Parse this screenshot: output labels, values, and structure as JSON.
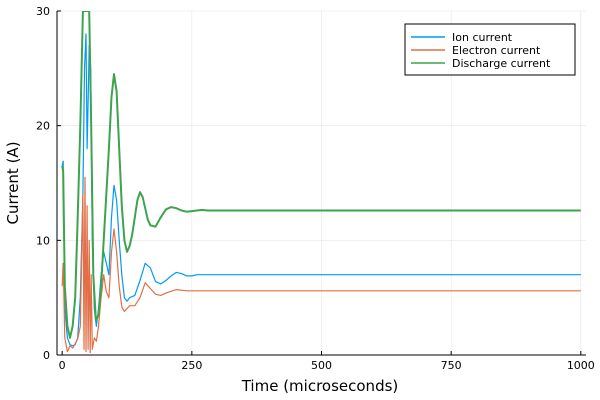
{
  "chart_data": {
    "type": "line",
    "title": "",
    "xlabel": "Time (microseconds)",
    "ylabel": "Current (A)",
    "xlim": [
      -10,
      1010
    ],
    "ylim": [
      0,
      30
    ],
    "xticks": [
      0,
      250,
      500,
      750,
      1000
    ],
    "yticks": [
      0,
      10,
      20,
      30
    ],
    "grid": true,
    "legend_position": "top-right",
    "series": [
      {
        "name": "Ion current",
        "color": "#009AFA",
        "x": [
          0,
          2,
          5,
          10,
          15,
          20,
          25,
          30,
          35,
          40,
          43,
          46,
          48,
          50,
          52,
          55,
          58,
          62,
          66,
          70,
          75,
          80,
          85,
          90,
          95,
          100,
          105,
          110,
          115,
          120,
          125,
          130,
          140,
          150,
          160,
          170,
          180,
          190,
          200,
          210,
          220,
          230,
          240,
          250,
          260,
          280,
          300,
          350,
          400,
          500,
          600,
          700,
          800,
          900,
          1000
        ],
        "y": [
          16.5,
          16.9,
          4.0,
          1.5,
          0.9,
          0.8,
          0.9,
          1.5,
          5.0,
          14.0,
          25.0,
          28.0,
          18.0,
          22.0,
          27.0,
          25.0,
          10.0,
          4.0,
          2.5,
          4.0,
          7.0,
          9.0,
          8.0,
          7.0,
          12.0,
          14.8,
          13.5,
          10.0,
          7.0,
          5.0,
          4.7,
          5.0,
          5.2,
          6.5,
          8.0,
          7.6,
          6.4,
          6.2,
          6.5,
          6.9,
          7.2,
          7.1,
          6.9,
          6.9,
          7.0,
          7.0,
          7.0,
          7.0,
          7.0,
          7.0,
          7.0,
          7.0,
          7.0,
          7.0,
          7.0
        ]
      },
      {
        "name": "Electron current",
        "color": "#E26F46",
        "x": [
          0,
          2,
          5,
          10,
          15,
          20,
          25,
          30,
          35,
          40,
          42,
          44,
          46,
          48,
          50,
          52,
          54,
          56,
          58,
          62,
          66,
          70,
          75,
          80,
          85,
          90,
          95,
          100,
          105,
          110,
          115,
          120,
          130,
          140,
          150,
          160,
          170,
          180,
          190,
          200,
          220,
          240,
          260,
          280,
          300,
          350,
          400,
          500,
          600,
          700,
          800,
          900,
          1000
        ],
        "y": [
          6.0,
          8.0,
          1.5,
          0.3,
          0.8,
          0.6,
          1.0,
          1.4,
          2.5,
          14.0,
          0.5,
          15.5,
          0.3,
          13.0,
          0.5,
          10.0,
          0.2,
          7.0,
          0.5,
          1.5,
          1.2,
          2.5,
          5.0,
          7.0,
          5.5,
          5.0,
          9.0,
          11.0,
          9.0,
          6.0,
          4.2,
          3.8,
          4.3,
          4.3,
          5.0,
          6.3,
          5.8,
          5.3,
          5.2,
          5.4,
          5.7,
          5.6,
          5.6,
          5.6,
          5.6,
          5.6,
          5.6,
          5.6,
          5.6,
          5.6,
          5.6,
          5.6,
          5.6
        ]
      },
      {
        "name": "Discharge current",
        "color": "#3DA44D",
        "x": [
          0,
          2,
          5,
          10,
          15,
          20,
          25,
          30,
          35,
          40,
          44,
          48,
          52,
          56,
          60,
          65,
          70,
          75,
          80,
          85,
          90,
          95,
          100,
          105,
          110,
          115,
          120,
          125,
          130,
          135,
          140,
          145,
          150,
          155,
          160,
          165,
          170,
          180,
          190,
          200,
          210,
          220,
          230,
          240,
          250,
          260,
          270,
          280,
          300,
          350,
          400,
          500,
          600,
          700,
          800,
          900,
          1000
        ],
        "y": [
          16.5,
          16.0,
          6.0,
          2.5,
          1.5,
          2.5,
          5.0,
          12.0,
          20.0,
          30.0,
          30.0,
          30.0,
          30.0,
          20.0,
          7.0,
          3.0,
          3.5,
          6.0,
          10.0,
          14.0,
          18.0,
          22.5,
          24.5,
          23.0,
          18.0,
          13.0,
          10.0,
          9.0,
          9.5,
          10.5,
          12.0,
          13.5,
          14.2,
          13.8,
          12.8,
          11.8,
          11.3,
          11.2,
          12.0,
          12.7,
          12.9,
          12.8,
          12.6,
          12.5,
          12.55,
          12.6,
          12.65,
          12.6,
          12.6,
          12.6,
          12.6,
          12.6,
          12.6,
          12.6,
          12.6,
          12.6,
          12.6
        ]
      }
    ]
  }
}
